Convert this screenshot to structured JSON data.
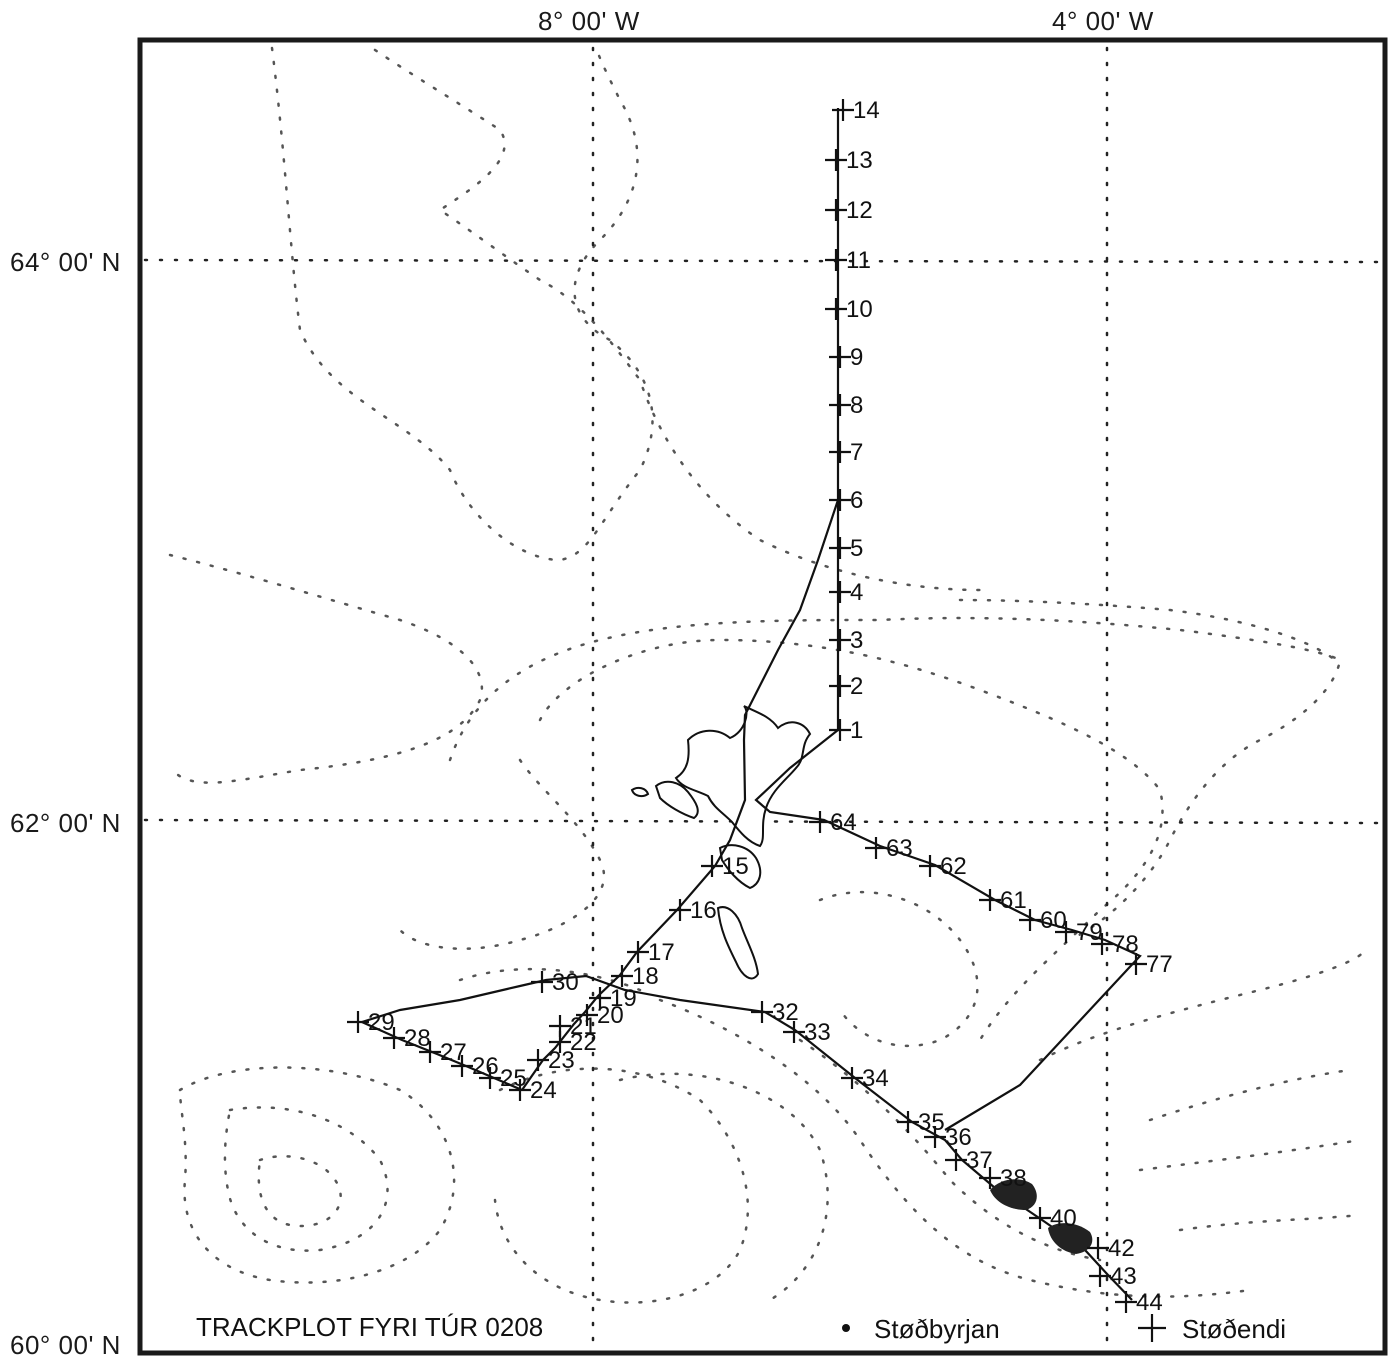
{
  "map": {
    "title": "TRACKPLOT FYRI TÚR 0208",
    "axes": {
      "longitude_labels": [
        "8° 00' W",
        "4° 00' W"
      ],
      "latitude_labels": [
        "64° 00' N",
        "62° 00' N",
        "60° 00' N"
      ]
    },
    "legend": {
      "start_label": "Støðbyrjan",
      "end_label": "Støðendi",
      "start_symbol": "dot",
      "end_symbol": "cross"
    },
    "stations": [
      "1",
      "2",
      "3",
      "4",
      "5",
      "6",
      "7",
      "8",
      "9",
      "10",
      "11",
      "12",
      "13",
      "14",
      "15",
      "16",
      "17",
      "18",
      "19",
      "20",
      "21",
      "22",
      "23",
      "24",
      "25",
      "26",
      "27",
      "28",
      "29",
      "30",
      "32",
      "33",
      "34",
      "35",
      "36",
      "37",
      "38",
      "40",
      "42",
      "43",
      "44",
      "64",
      "63",
      "62",
      "61",
      "60",
      "79",
      "78",
      "77"
    ],
    "colors": {
      "ink": "#111111",
      "background": "#ffffff"
    }
  }
}
